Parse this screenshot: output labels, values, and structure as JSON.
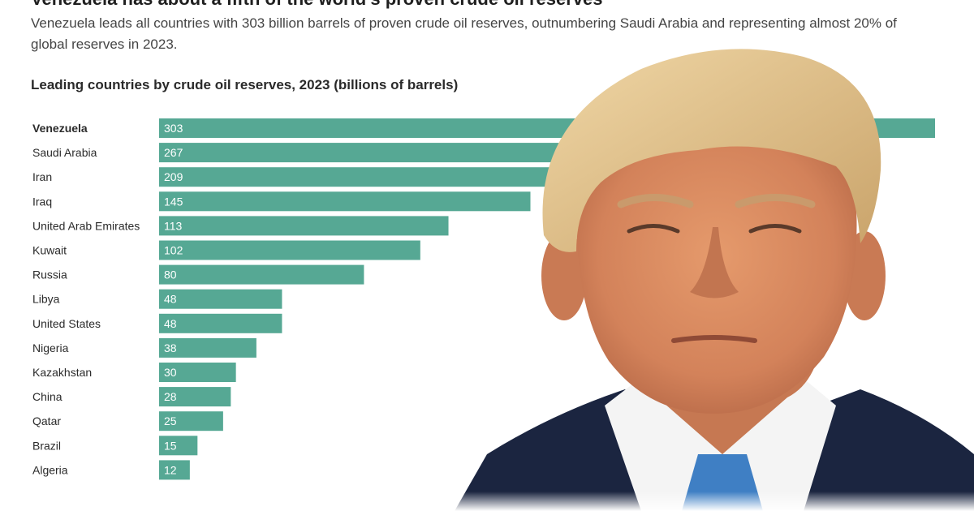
{
  "headline": "Venezuela has about a fifth of the world's proven crude oil reserves",
  "subtitle": "Venezuela leads all countries with 303 billion barrels of proven crude oil reserves, outnumbering Saudi Arabia and representing almost 20% of global reserves in 2023.",
  "chart_data": {
    "type": "bar",
    "orientation": "horizontal",
    "title": "Leading countries by crude oil reserves, 2023 (billions of barrels)",
    "categories": [
      "Venezuela",
      "Saudi Arabia",
      "Iran",
      "Iraq",
      "United Arab Emirates",
      "Kuwait",
      "Russia",
      "Libya",
      "United States",
      "Nigeria",
      "Kazakhstan",
      "China",
      "Qatar",
      "Brazil",
      "Algeria"
    ],
    "values": [
      303,
      267,
      209,
      145,
      113,
      102,
      80,
      48,
      48,
      38,
      30,
      28,
      25,
      15,
      12
    ],
    "highlight": "Venezuela",
    "xlim": [
      0,
      303
    ],
    "bar_color": "#56a894",
    "xlabel": "",
    "ylabel": ""
  },
  "overlay_photo": {
    "subject": "man-portrait",
    "suit_color": "#1b2540",
    "tie_color": "#3f7fc4",
    "skin_color": "#d98a5f",
    "hair_color": "#e3c28a"
  }
}
